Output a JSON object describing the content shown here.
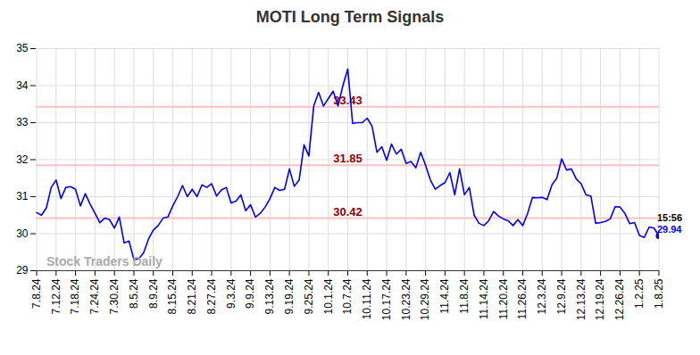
{
  "chart_data": {
    "type": "line",
    "title": "MOTI Long Term Signals",
    "categories": [
      "7.8.24",
      null,
      null,
      null,
      "7.12.24",
      null,
      null,
      null,
      "7.18.24",
      null,
      null,
      null,
      "7.24.24",
      null,
      null,
      null,
      "7.30.24",
      null,
      null,
      null,
      "8.5.24",
      null,
      null,
      null,
      "8.9.24",
      null,
      null,
      null,
      "8.15.24",
      null,
      null,
      null,
      "8.21.24",
      null,
      null,
      null,
      "8.27.24",
      null,
      null,
      null,
      "9.3.24",
      null,
      null,
      null,
      "9.9.24",
      null,
      null,
      null,
      "9.13.24",
      null,
      null,
      null,
      "9.19.24",
      null,
      null,
      null,
      "9.25.24",
      null,
      null,
      null,
      "10.1.24",
      null,
      null,
      null,
      "10.7.24",
      null,
      null,
      null,
      "10.11.24",
      null,
      null,
      null,
      "10.17.24",
      null,
      null,
      null,
      "10.23.24",
      null,
      null,
      null,
      "10.29.24",
      null,
      null,
      null,
      "11.4.24",
      null,
      null,
      null,
      "11.8.24",
      null,
      null,
      null,
      "11.14.24",
      null,
      null,
      null,
      "11.20.24",
      null,
      null,
      null,
      "11.26.24",
      null,
      null,
      null,
      "12.3.24",
      null,
      null,
      null,
      "12.9.24",
      null,
      null,
      null,
      "12.13.24",
      null,
      null,
      null,
      "12.19.24",
      null,
      null,
      null,
      "12.26.24",
      null,
      null,
      null,
      "1.2.25",
      null,
      null,
      null,
      "1.8.25"
    ],
    "values": [
      30.57,
      30.5,
      30.7,
      31.25,
      31.45,
      30.95,
      31.25,
      31.27,
      31.2,
      30.75,
      31.08,
      30.8,
      30.55,
      30.3,
      30.42,
      30.38,
      30.15,
      30.45,
      29.75,
      29.8,
      29.3,
      29.32,
      29.48,
      29.85,
      30.1,
      30.22,
      30.42,
      30.45,
      30.75,
      31.0,
      31.3,
      31.0,
      31.2,
      31.0,
      31.32,
      31.25,
      31.35,
      31.02,
      31.18,
      31.25,
      30.83,
      30.88,
      31.05,
      30.62,
      30.78,
      30.45,
      30.55,
      30.72,
      30.95,
      31.25,
      31.17,
      31.2,
      31.75,
      31.28,
      31.45,
      32.4,
      32.1,
      33.45,
      33.82,
      33.45,
      33.65,
      33.85,
      33.45,
      34.0,
      34.45,
      32.98,
      33.0,
      33.0,
      33.12,
      32.9,
      32.2,
      32.35,
      31.98,
      32.42,
      32.15,
      32.28,
      31.9,
      31.95,
      31.78,
      32.2,
      31.85,
      31.45,
      31.2,
      31.3,
      31.38,
      31.65,
      31.05,
      31.75,
      31.05,
      31.25,
      30.5,
      30.28,
      30.22,
      30.35,
      30.6,
      30.48,
      30.4,
      30.35,
      30.22,
      30.38,
      30.22,
      30.55,
      30.98,
      30.97,
      30.98,
      30.92,
      31.32,
      31.5,
      32.02,
      31.72,
      31.75,
      31.48,
      31.35,
      31.05,
      31.02,
      30.28,
      30.3,
      30.33,
      30.4,
      30.73,
      30.72,
      30.55,
      30.27,
      30.3,
      29.95,
      29.9,
      30.18,
      30.15,
      29.94
    ],
    "color": "#0000ee",
    "ylim": [
      29,
      35
    ],
    "yticks": [
      29,
      30,
      31,
      32,
      33,
      34,
      35
    ],
    "grid": true,
    "levels": [
      33.43,
      31.85,
      30.42
    ],
    "levels_color": "#ffc0c0",
    "levels_label_color": "#8b0000",
    "end_time_label": "15:56",
    "watermark": "Stock Traders Daily"
  }
}
